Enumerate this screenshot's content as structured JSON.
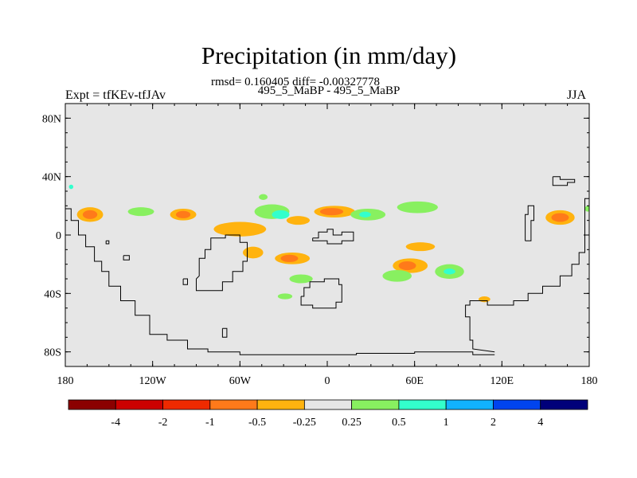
{
  "title": "Precipitation (in mm/day)",
  "stats": "rmsd= 0.160405 diff= -0.00327778",
  "case": "495_5_MaBP - 495_5_MaBP",
  "left_label": "Expt = tfKEv-tfJAv",
  "right_label": "JJA",
  "map": {
    "lon_range": [
      -180,
      180
    ],
    "lat_range": [
      -90,
      90
    ],
    "background_color": "#e6e6e6",
    "lon_ticks": [
      {
        "value": -180,
        "label": "180"
      },
      {
        "value": -120,
        "label": "120W"
      },
      {
        "value": -60,
        "label": "60W"
      },
      {
        "value": 0,
        "label": "0"
      },
      {
        "value": 60,
        "label": "60E"
      },
      {
        "value": 120,
        "label": "120E"
      },
      {
        "value": 180,
        "label": "180"
      }
    ],
    "lat_ticks": [
      {
        "value": 80,
        "label": "80N"
      },
      {
        "value": 40,
        "label": "40N"
      },
      {
        "value": 0,
        "label": "0"
      },
      {
        "value": -40,
        "label": "40S"
      },
      {
        "value": -80,
        "label": "80S"
      }
    ]
  },
  "colorbar": {
    "colors": [
      "#8b0000",
      "#cc0000",
      "#ee2a00",
      "#ff7a1a",
      "#ffb30f",
      "#e6e6e6",
      "#88f060",
      "#33ffcc",
      "#11b2ff",
      "#0044ee",
      "#00007a"
    ],
    "labels": [
      "-4",
      "-2",
      "-1",
      "-0.5",
      "-0.25",
      "0.25",
      "0.5",
      "1",
      "2",
      "4"
    ]
  },
  "anomalies": [
    {
      "lon": -163,
      "lat": 14,
      "rx": 9,
      "ry": 5,
      "color": "#ffb30f"
    },
    {
      "lon": -163,
      "lat": 14,
      "rx": 5,
      "ry": 3,
      "color": "#ff7a1a"
    },
    {
      "lon": -128,
      "lat": 16,
      "rx": 9,
      "ry": 3,
      "color": "#88f060"
    },
    {
      "lon": -99,
      "lat": 14,
      "rx": 9,
      "ry": 4,
      "color": "#ffb30f"
    },
    {
      "lon": -99,
      "lat": 14,
      "rx": 5,
      "ry": 2.5,
      "color": "#ff7a1a"
    },
    {
      "lon": -60,
      "lat": 4,
      "rx": 18,
      "ry": 5,
      "color": "#ffb30f"
    },
    {
      "lon": -51,
      "lat": -12,
      "rx": 7,
      "ry": 4,
      "color": "#ffb30f"
    },
    {
      "lon": -38,
      "lat": 16,
      "rx": 12,
      "ry": 5,
      "color": "#88f060"
    },
    {
      "lon": -32,
      "lat": 14,
      "rx": 6,
      "ry": 3,
      "color": "#33ffcc"
    },
    {
      "lon": -44,
      "lat": 26,
      "rx": 3,
      "ry": 2,
      "color": "#88f060"
    },
    {
      "lon": -20,
      "lat": 10,
      "rx": 8,
      "ry": 3,
      "color": "#ffb30f"
    },
    {
      "lon": -24,
      "lat": -16,
      "rx": 12,
      "ry": 4,
      "color": "#ffb30f"
    },
    {
      "lon": -26,
      "lat": -16,
      "rx": 6,
      "ry": 2.5,
      "color": "#ff7a1a"
    },
    {
      "lon": -18,
      "lat": -30,
      "rx": 8,
      "ry": 3,
      "color": "#88f060"
    },
    {
      "lon": 5,
      "lat": 16,
      "rx": 14,
      "ry": 4,
      "color": "#ffb30f"
    },
    {
      "lon": 3,
      "lat": 16,
      "rx": 8,
      "ry": 2.5,
      "color": "#ff7a1a"
    },
    {
      "lon": 28,
      "lat": 14,
      "rx": 12,
      "ry": 4,
      "color": "#88f060"
    },
    {
      "lon": 26,
      "lat": 14,
      "rx": 4,
      "ry": 2,
      "color": "#33ffcc"
    },
    {
      "lon": 62,
      "lat": 19,
      "rx": 14,
      "ry": 4,
      "color": "#88f060"
    },
    {
      "lon": 64,
      "lat": -8,
      "rx": 10,
      "ry": 3,
      "color": "#ffb30f"
    },
    {
      "lon": 57,
      "lat": -21,
      "rx": 12,
      "ry": 5,
      "color": "#ffb30f"
    },
    {
      "lon": 55,
      "lat": -21,
      "rx": 6,
      "ry": 3,
      "color": "#ff7a1a"
    },
    {
      "lon": 48,
      "lat": -28,
      "rx": 10,
      "ry": 4,
      "color": "#88f060"
    },
    {
      "lon": 84,
      "lat": -25,
      "rx": 10,
      "ry": 5,
      "color": "#88f060"
    },
    {
      "lon": 84,
      "lat": -25,
      "rx": 4,
      "ry": 2,
      "color": "#33ffcc"
    },
    {
      "lon": 108,
      "lat": -44,
      "rx": 4,
      "ry": 2,
      "color": "#ffb30f"
    },
    {
      "lon": -29,
      "lat": -42,
      "rx": 5,
      "ry": 2,
      "color": "#88f060"
    },
    {
      "lon": 160,
      "lat": 12,
      "rx": 10,
      "ry": 5,
      "color": "#ffb30f"
    },
    {
      "lon": 160,
      "lat": 12,
      "rx": 6,
      "ry": 3,
      "color": "#ff7a1a"
    },
    {
      "lon": -176,
      "lat": 33,
      "rx": 1.5,
      "ry": 1.5,
      "color": "#33ffcc"
    },
    {
      "lon": 179,
      "lat": 18,
      "rx": 2,
      "ry": 2,
      "color": "#88f060"
    }
  ],
  "coastlines": [
    [
      [
        -180,
        18
      ],
      [
        -176,
        18
      ],
      [
        -176,
        10
      ],
      [
        -171,
        10
      ],
      [
        -171,
        0
      ],
      [
        -166,
        0
      ],
      [
        -166,
        -8
      ],
      [
        -160,
        -8
      ],
      [
        -160,
        -18
      ],
      [
        -155,
        -18
      ],
      [
        -155,
        -25
      ],
      [
        -150,
        -25
      ],
      [
        -150,
        -35
      ],
      [
        -142,
        -35
      ],
      [
        -142,
        -45
      ],
      [
        -132,
        -45
      ],
      [
        -132,
        -55
      ],
      [
        -122,
        -55
      ],
      [
        -122,
        -68
      ],
      [
        -110,
        -68
      ],
      [
        -110,
        -72
      ],
      [
        -96,
        -72
      ],
      [
        -96,
        -78
      ],
      [
        -82,
        -78
      ],
      [
        -82,
        -80
      ],
      [
        -60,
        -80
      ],
      [
        -60,
        -82
      ],
      [
        20,
        -82
      ],
      [
        20,
        -81
      ],
      [
        60,
        -81
      ],
      [
        60,
        -80
      ],
      [
        100,
        -80
      ],
      [
        100,
        -82
      ],
      [
        115,
        -82
      ]
    ],
    [
      [
        115,
        -80
      ],
      [
        100,
        -78
      ],
      [
        100,
        -72
      ],
      [
        98,
        -72
      ],
      [
        98,
        -56
      ],
      [
        95,
        -56
      ],
      [
        95,
        -48
      ],
      [
        98,
        -48
      ],
      [
        98,
        -45
      ],
      [
        110,
        -45
      ],
      [
        110,
        -48
      ],
      [
        128,
        -48
      ],
      [
        128,
        -45
      ],
      [
        138,
        -45
      ],
      [
        138,
        -40
      ],
      [
        148,
        -40
      ],
      [
        148,
        -35
      ],
      [
        160,
        -35
      ],
      [
        160,
        -28
      ],
      [
        168,
        -28
      ],
      [
        168,
        -20
      ],
      [
        173,
        -20
      ],
      [
        173,
        -12
      ],
      [
        177,
        -12
      ],
      [
        177,
        25
      ],
      [
        180,
        25
      ]
    ],
    [
      [
        -90,
        -30
      ],
      [
        -88,
        -28
      ],
      [
        -88,
        -16
      ],
      [
        -84,
        -16
      ],
      [
        -84,
        -10
      ],
      [
        -80,
        -10
      ],
      [
        -80,
        -2
      ],
      [
        -70,
        -2
      ],
      [
        -70,
        0
      ],
      [
        -60,
        0
      ],
      [
        -60,
        -5
      ],
      [
        -55,
        -5
      ],
      [
        -55,
        -18
      ],
      [
        -58,
        -18
      ],
      [
        -58,
        -25
      ],
      [
        -65,
        -25
      ],
      [
        -65,
        -32
      ],
      [
        -72,
        -32
      ],
      [
        -72,
        -38
      ],
      [
        -90,
        -38
      ],
      [
        -90,
        -30
      ]
    ],
    [
      [
        -10,
        -2
      ],
      [
        -6,
        -2
      ],
      [
        -6,
        2
      ],
      [
        0,
        2
      ],
      [
        0,
        4
      ],
      [
        4,
        4
      ],
      [
        4,
        0
      ],
      [
        10,
        0
      ],
      [
        10,
        2
      ],
      [
        18,
        2
      ],
      [
        18,
        -4
      ],
      [
        10,
        -4
      ],
      [
        10,
        -6
      ],
      [
        0,
        -6
      ],
      [
        0,
        -4
      ],
      [
        -10,
        -4
      ],
      [
        -10,
        -2
      ]
    ],
    [
      [
        -18,
        -42
      ],
      [
        -16,
        -42
      ],
      [
        -16,
        -36
      ],
      [
        -12,
        -36
      ],
      [
        -12,
        -32
      ],
      [
        -2,
        -32
      ],
      [
        -2,
        -30
      ],
      [
        8,
        -30
      ],
      [
        8,
        -34
      ],
      [
        10,
        -34
      ],
      [
        10,
        -46
      ],
      [
        6,
        -46
      ],
      [
        6,
        -50
      ],
      [
        -10,
        -50
      ],
      [
        -10,
        -48
      ],
      [
        -18,
        -48
      ],
      [
        -18,
        -42
      ]
    ],
    [
      [
        136,
        -4
      ],
      [
        136,
        14
      ],
      [
        138,
        14
      ],
      [
        138,
        20
      ],
      [
        142,
        20
      ],
      [
        142,
        10
      ],
      [
        140,
        10
      ],
      [
        140,
        -4
      ],
      [
        136,
        -4
      ]
    ],
    [
      [
        155,
        40
      ],
      [
        160,
        40
      ],
      [
        160,
        38
      ],
      [
        170,
        38
      ],
      [
        170,
        36
      ],
      [
        165,
        36
      ],
      [
        165,
        34
      ],
      [
        155,
        34
      ],
      [
        155,
        40
      ]
    ],
    [
      [
        -99,
        -30
      ],
      [
        -96,
        -30
      ],
      [
        -96,
        -34
      ],
      [
        -99,
        -34
      ],
      [
        -99,
        -30
      ]
    ],
    [
      [
        -140,
        -14
      ],
      [
        -136,
        -14
      ],
      [
        -136,
        -17
      ],
      [
        -140,
        -17
      ],
      [
        -140,
        -14
      ]
    ],
    [
      [
        -72,
        -64
      ],
      [
        -69,
        -64
      ],
      [
        -69,
        -70
      ],
      [
        -72,
        -70
      ],
      [
        -72,
        -64
      ]
    ],
    [
      [
        -152,
        -4
      ],
      [
        -150,
        -4
      ],
      [
        -150,
        -6
      ],
      [
        -152,
        -6
      ],
      [
        -152,
        -4
      ]
    ]
  ]
}
